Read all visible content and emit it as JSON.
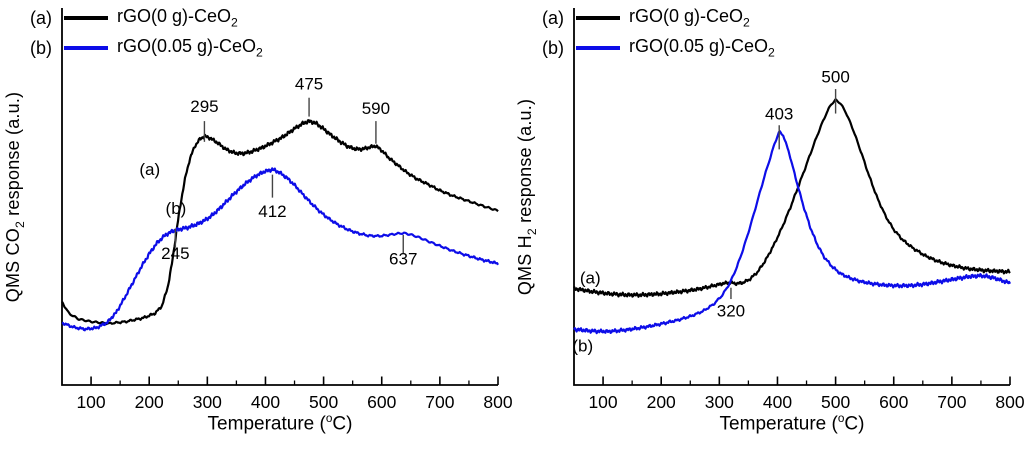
{
  "figure": {
    "background": "#ffffff",
    "axis_color": "#000000"
  },
  "chart_data": [
    {
      "id": "co2-tpo",
      "type": "line",
      "title": "",
      "xlabel_parts": {
        "pre": "Temperature (",
        "sup": "o",
        "post": "C)"
      },
      "ylabel_parts": {
        "pre": "QMS CO",
        "sub": "2",
        "post": " response (a.u.)"
      },
      "x_range": [
        50,
        800
      ],
      "y_range": [
        0,
        1
      ],
      "grid": false,
      "x_ticks": [
        100,
        200,
        300,
        400,
        500,
        600,
        700,
        800
      ],
      "legend": {
        "position": "top-left",
        "items": [
          {
            "tag": "(a)",
            "color": "#000000",
            "label_main": "rGO(0 g)-CeO",
            "label_sub": "2"
          },
          {
            "tag": "(b)",
            "color": "#0d0de8",
            "label_main": "rGO(0.05 g)-CeO",
            "label_sub": "2"
          }
        ]
      },
      "series": [
        {
          "name": "(a) rGO(0 g)-CeO2",
          "color": "#000000",
          "points": [
            [
              50,
              0.22
            ],
            [
              62,
              0.19
            ],
            [
              78,
              0.175
            ],
            [
              100,
              0.168
            ],
            [
              130,
              0.163
            ],
            [
              160,
              0.168
            ],
            [
              190,
              0.178
            ],
            [
              210,
              0.19
            ],
            [
              222,
              0.21
            ],
            [
              232,
              0.26
            ],
            [
              240,
              0.33
            ],
            [
              248,
              0.42
            ],
            [
              255,
              0.49
            ],
            [
              262,
              0.55
            ],
            [
              270,
              0.6
            ],
            [
              278,
              0.632
            ],
            [
              287,
              0.652
            ],
            [
              295,
              0.66
            ],
            [
              305,
              0.655
            ],
            [
              318,
              0.642
            ],
            [
              332,
              0.625
            ],
            [
              348,
              0.615
            ],
            [
              362,
              0.614
            ],
            [
              378,
              0.62
            ],
            [
              395,
              0.63
            ],
            [
              412,
              0.643
            ],
            [
              430,
              0.658
            ],
            [
              448,
              0.678
            ],
            [
              462,
              0.692
            ],
            [
              475,
              0.7
            ],
            [
              487,
              0.694
            ],
            [
              498,
              0.682
            ],
            [
              512,
              0.664
            ],
            [
              526,
              0.648
            ],
            [
              540,
              0.634
            ],
            [
              554,
              0.626
            ],
            [
              568,
              0.626
            ],
            [
              580,
              0.631
            ],
            [
              590,
              0.634
            ],
            [
              600,
              0.622
            ],
            [
              612,
              0.603
            ],
            [
              626,
              0.585
            ],
            [
              642,
              0.565
            ],
            [
              660,
              0.547
            ],
            [
              680,
              0.532
            ],
            [
              700,
              0.516
            ],
            [
              722,
              0.502
            ],
            [
              745,
              0.49
            ],
            [
              770,
              0.477
            ],
            [
              800,
              0.462
            ]
          ]
        },
        {
          "name": "(b) rGO(0.05 g)-CeO2",
          "color": "#0d0de8",
          "points": [
            [
              50,
              0.165
            ],
            [
              70,
              0.153
            ],
            [
              90,
              0.148
            ],
            [
              110,
              0.152
            ],
            [
              128,
              0.166
            ],
            [
              143,
              0.192
            ],
            [
              158,
              0.232
            ],
            [
              172,
              0.272
            ],
            [
              186,
              0.312
            ],
            [
              200,
              0.348
            ],
            [
              214,
              0.378
            ],
            [
              228,
              0.398
            ],
            [
              240,
              0.408
            ],
            [
              252,
              0.413
            ],
            [
              265,
              0.417
            ],
            [
              280,
              0.425
            ],
            [
              295,
              0.436
            ],
            [
              310,
              0.452
            ],
            [
              325,
              0.474
            ],
            [
              340,
              0.498
            ],
            [
              355,
              0.52
            ],
            [
              370,
              0.54
            ],
            [
              385,
              0.556
            ],
            [
              398,
              0.566
            ],
            [
              412,
              0.572
            ],
            [
              424,
              0.564
            ],
            [
              438,
              0.548
            ],
            [
              452,
              0.527
            ],
            [
              466,
              0.503
            ],
            [
              480,
              0.48
            ],
            [
              495,
              0.458
            ],
            [
              510,
              0.44
            ],
            [
              525,
              0.425
            ],
            [
              542,
              0.412
            ],
            [
              560,
              0.402
            ],
            [
              578,
              0.396
            ],
            [
              596,
              0.395
            ],
            [
              612,
              0.398
            ],
            [
              625,
              0.401
            ],
            [
              637,
              0.403
            ],
            [
              650,
              0.399
            ],
            [
              665,
              0.391
            ],
            [
              682,
              0.38
            ],
            [
              700,
              0.369
            ],
            [
              720,
              0.357
            ],
            [
              742,
              0.346
            ],
            [
              768,
              0.334
            ],
            [
              800,
              0.322
            ]
          ]
        }
      ],
      "annotations": {
        "peaks": [
          {
            "text": "295",
            "x": 295,
            "label_y": 0.74,
            "tick": [
              0.645,
              0.7
            ]
          },
          {
            "text": "475",
            "x": 475,
            "label_y": 0.8,
            "tick": [
              0.712,
              0.762
            ]
          },
          {
            "text": "590",
            "x": 590,
            "label_y": 0.735,
            "tick": [
              0.64,
              0.7
            ]
          },
          {
            "text": "412",
            "x": 412,
            "label_y": 0.462,
            "tick": [
              0.497,
              0.558
            ]
          },
          {
            "text": "245",
            "x": 245,
            "label_y": 0.35,
            "tick": [
              0.365,
              0.415
            ]
          },
          {
            "text": "637",
            "x": 637,
            "label_y": 0.335,
            "tick": [
              0.35,
              0.398
            ]
          }
        ],
        "curve_labels": [
          {
            "text": "(a)",
            "x": 201,
            "y": 0.573
          },
          {
            "text": "(b)",
            "x": 246,
            "y": 0.47
          }
        ]
      }
    },
    {
      "id": "h2-tpr",
      "type": "line",
      "title": "",
      "xlabel_parts": {
        "pre": "Temperature (",
        "sup": "o",
        "post": "C)"
      },
      "ylabel_parts": {
        "pre": "QMS H",
        "sub": "2",
        "post": " response (a.u.)"
      },
      "x_range": [
        50,
        800
      ],
      "y_range": [
        0,
        1
      ],
      "grid": false,
      "x_ticks": [
        100,
        200,
        300,
        400,
        500,
        600,
        700,
        800
      ],
      "legend": {
        "position": "top-left",
        "items": [
          {
            "tag": "(a)",
            "color": "#000000",
            "label_main": "rGO(0 g)-CeO",
            "label_sub": "2"
          },
          {
            "tag": "(b)",
            "color": "#0d0de8",
            "label_main": "rGO(0.05 g)-CeO",
            "label_sub": "2"
          }
        ]
      },
      "series": [
        {
          "name": "(a) rGO(0 g)-CeO2",
          "color": "#000000",
          "points": [
            [
              50,
              0.256
            ],
            [
              80,
              0.248
            ],
            [
              110,
              0.242
            ],
            [
              140,
              0.239
            ],
            [
              170,
              0.239
            ],
            [
              200,
              0.242
            ],
            [
              230,
              0.247
            ],
            [
              255,
              0.252
            ],
            [
              275,
              0.258
            ],
            [
              292,
              0.264
            ],
            [
              306,
              0.269
            ],
            [
              318,
              0.272
            ],
            [
              328,
              0.269
            ],
            [
              340,
              0.271
            ],
            [
              352,
              0.28
            ],
            [
              366,
              0.3
            ],
            [
              380,
              0.332
            ],
            [
              394,
              0.372
            ],
            [
              408,
              0.418
            ],
            [
              422,
              0.47
            ],
            [
              436,
              0.527
            ],
            [
              450,
              0.585
            ],
            [
              462,
              0.636
            ],
            [
              474,
              0.684
            ],
            [
              484,
              0.72
            ],
            [
              492,
              0.744
            ],
            [
              500,
              0.756
            ],
            [
              508,
              0.748
            ],
            [
              518,
              0.722
            ],
            [
              530,
              0.678
            ],
            [
              544,
              0.617
            ],
            [
              558,
              0.553
            ],
            [
              572,
              0.495
            ],
            [
              586,
              0.448
            ],
            [
              600,
              0.412
            ],
            [
              616,
              0.384
            ],
            [
              634,
              0.362
            ],
            [
              654,
              0.343
            ],
            [
              676,
              0.328
            ],
            [
              700,
              0.317
            ],
            [
              726,
              0.309
            ],
            [
              754,
              0.304
            ],
            [
              800,
              0.3
            ]
          ]
        },
        {
          "name": "(b) rGO(0.05 g)-CeO2",
          "color": "#0d0de8",
          "points": [
            [
              50,
              0.148
            ],
            [
              80,
              0.143
            ],
            [
              110,
              0.142
            ],
            [
              140,
              0.146
            ],
            [
              170,
              0.153
            ],
            [
              200,
              0.162
            ],
            [
              228,
              0.172
            ],
            [
              252,
              0.183
            ],
            [
              272,
              0.196
            ],
            [
              290,
              0.214
            ],
            [
              305,
              0.238
            ],
            [
              318,
              0.27
            ],
            [
              330,
              0.312
            ],
            [
              342,
              0.365
            ],
            [
              354,
              0.425
            ],
            [
              366,
              0.49
            ],
            [
              377,
              0.55
            ],
            [
              387,
              0.6
            ],
            [
              395,
              0.64
            ],
            [
              403,
              0.672
            ],
            [
              410,
              0.662
            ],
            [
              420,
              0.616
            ],
            [
              432,
              0.545
            ],
            [
              444,
              0.478
            ],
            [
              456,
              0.42
            ],
            [
              468,
              0.374
            ],
            [
              480,
              0.34
            ],
            [
              494,
              0.314
            ],
            [
              508,
              0.296
            ],
            [
              524,
              0.284
            ],
            [
              542,
              0.275
            ],
            [
              562,
              0.269
            ],
            [
              584,
              0.265
            ],
            [
              608,
              0.263
            ],
            [
              632,
              0.264
            ],
            [
              656,
              0.268
            ],
            [
              682,
              0.275
            ],
            [
              708,
              0.282
            ],
            [
              732,
              0.288
            ],
            [
              752,
              0.29
            ],
            [
              770,
              0.285
            ],
            [
              788,
              0.276
            ],
            [
              800,
              0.27
            ]
          ]
        }
      ],
      "annotations": {
        "peaks": [
          {
            "text": "500",
            "x": 500,
            "label_y": 0.818,
            "tick": [
              0.72,
              0.785
            ]
          },
          {
            "text": "403",
            "x": 403,
            "label_y": 0.72,
            "tick": [
              0.625,
              0.689
            ]
          },
          {
            "text": "320",
            "x": 320,
            "label_y": 0.198,
            "tick": [
              0.228,
              0.258
            ]
          }
        ],
        "curve_labels": [
          {
            "text": "(a)",
            "x": 78,
            "y": 0.285
          },
          {
            "text": "(b)",
            "x": 65,
            "y": 0.105
          }
        ]
      }
    }
  ]
}
